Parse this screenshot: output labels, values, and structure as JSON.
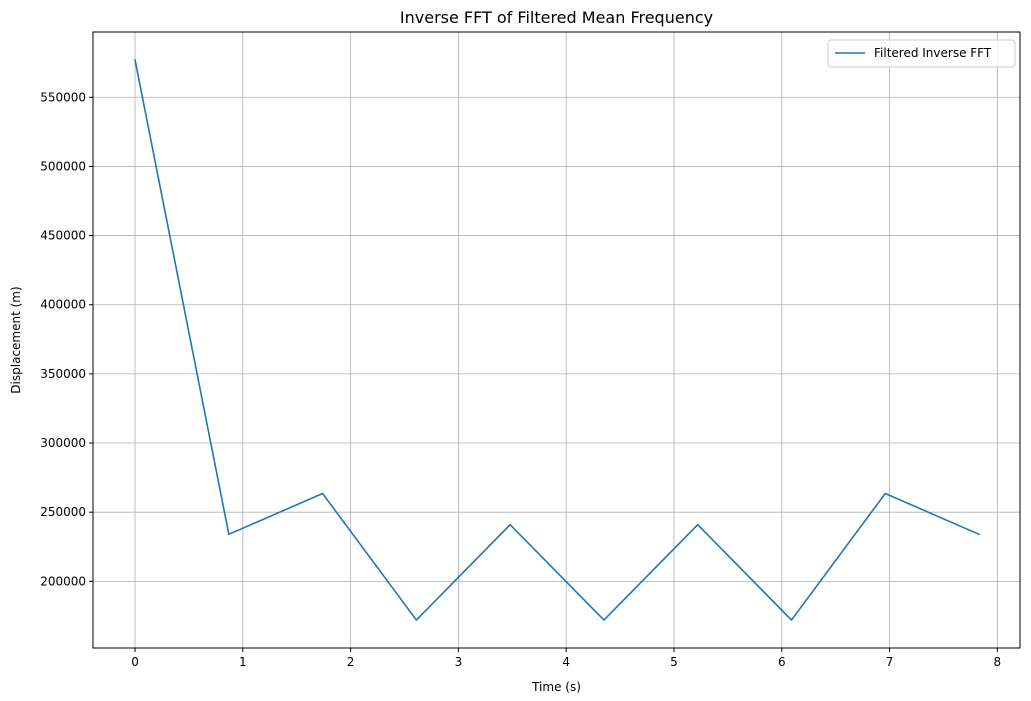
{
  "chart_data": {
    "type": "line",
    "title": "Inverse FFT of Filtered Mean Frequency",
    "xlabel": "Time (s)",
    "ylabel": "Displacement (m)",
    "xlim": [
      -0.39,
      8.21
    ],
    "ylim": [
      151800,
      597200
    ],
    "xticks": [
      0,
      1,
      2,
      3,
      4,
      5,
      6,
      7,
      8
    ],
    "yticks": [
      200000,
      250000,
      300000,
      350000,
      400000,
      450000,
      500000,
      550000
    ],
    "grid": true,
    "legend_position": "top-right",
    "series": [
      {
        "name": "Filtered Inverse FFT",
        "color": "#1f77b4",
        "x": [
          0.0,
          0.87,
          1.74,
          2.61,
          3.48,
          4.35,
          5.22,
          6.09,
          6.96,
          7.83
        ],
        "y": [
          577000,
          234000,
          263500,
          172000,
          241000,
          172000,
          241000,
          172000,
          263500,
          234000
        ]
      }
    ]
  }
}
